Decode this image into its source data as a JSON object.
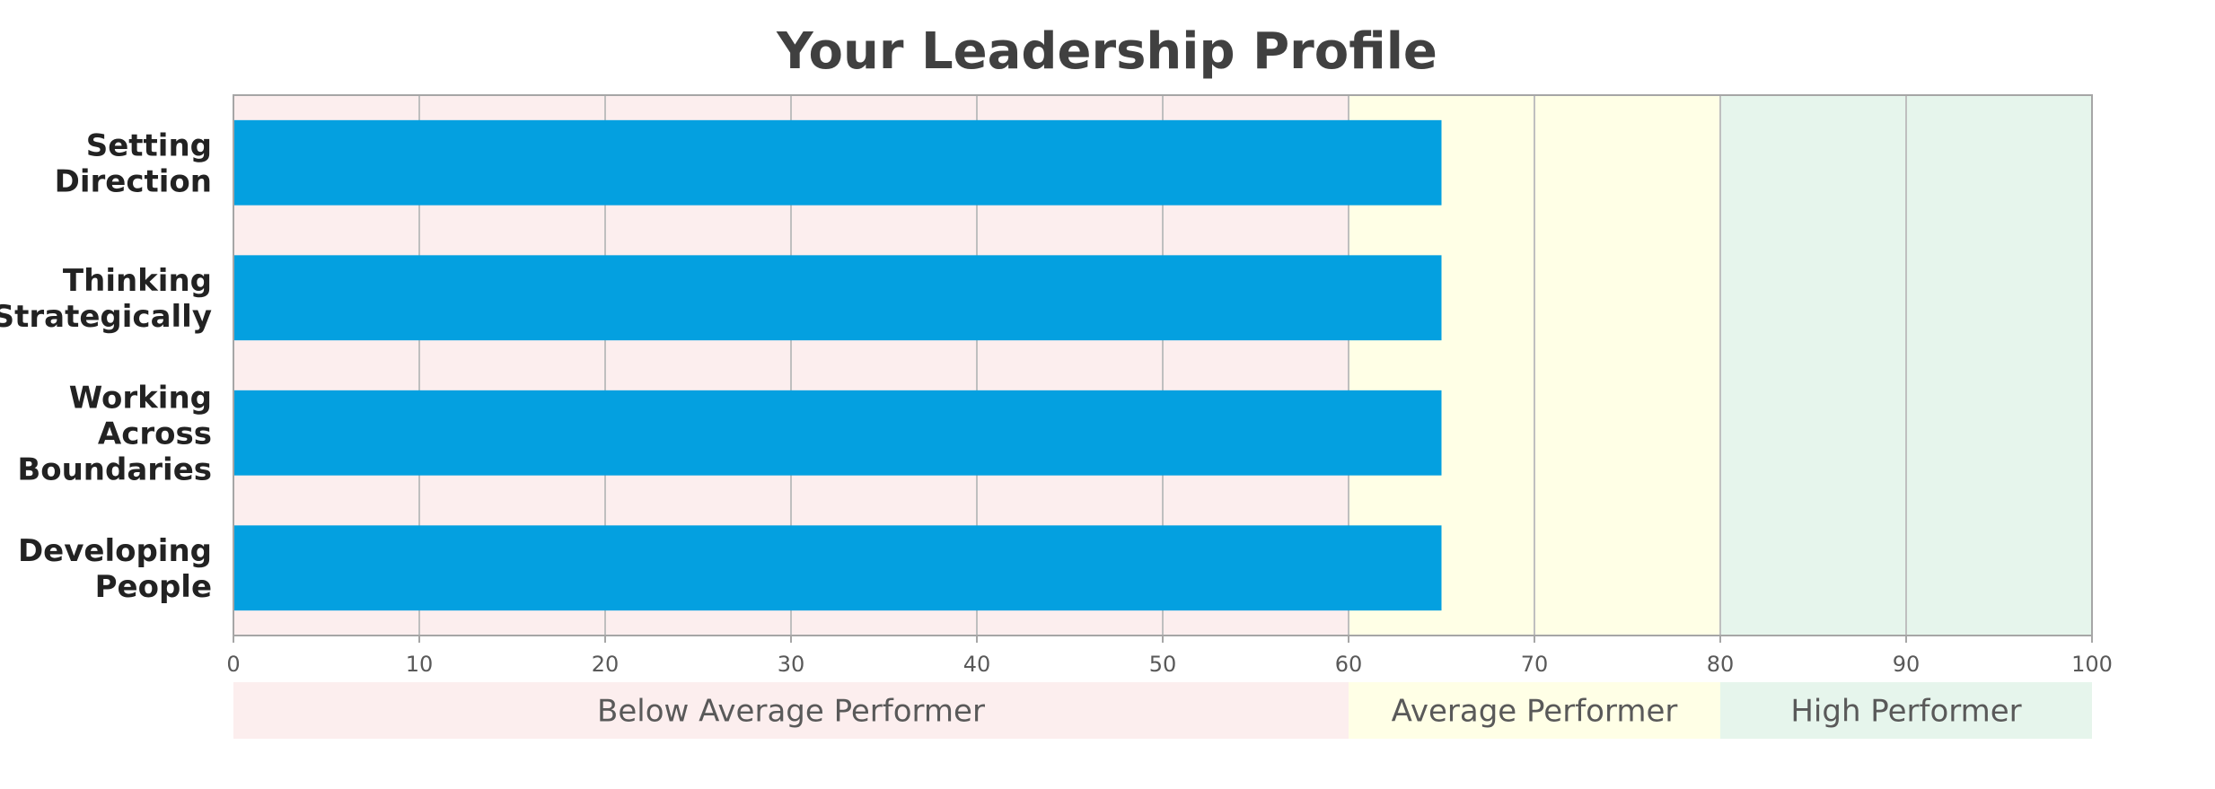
{
  "chart_data": {
    "type": "bar",
    "orientation": "horizontal",
    "title": "Your Leadership Profile",
    "categories": [
      "Setting Direction",
      "Thinking Strategically",
      "Working Across Boundaries",
      "Developing People"
    ],
    "category_lines": [
      [
        "Setting",
        "Direction"
      ],
      [
        "Thinking",
        "Strategically"
      ],
      [
        "Working",
        "Across",
        "Boundaries"
      ],
      [
        "Developing",
        "People"
      ]
    ],
    "values": [
      65,
      65,
      65,
      65
    ],
    "bar_color": "#04A0E0",
    "xlim": [
      0,
      100
    ],
    "xticks": [
      0,
      10,
      20,
      30,
      40,
      50,
      60,
      70,
      80,
      90,
      100
    ],
    "xtick_labels": [
      "0",
      "10",
      "20",
      "30",
      "40",
      "50",
      "60",
      "70",
      "80",
      "90",
      "100"
    ],
    "grid": true,
    "bands": [
      {
        "label": "Below Average Performer",
        "from": 0,
        "to": 60,
        "color": "#FCEEEE"
      },
      {
        "label": "Average Performer",
        "from": 60,
        "to": 80,
        "color": "#FFFFE6"
      },
      {
        "label": "High Performer",
        "from": 80,
        "to": 100,
        "color": "#E6F5EC"
      }
    ]
  }
}
